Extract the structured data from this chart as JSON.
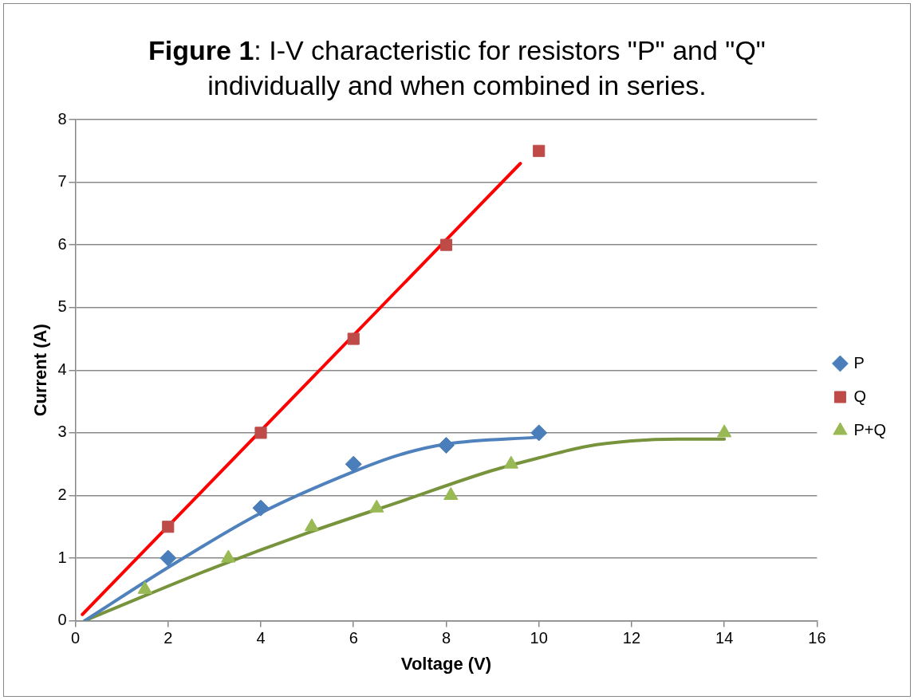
{
  "chart_data": {
    "type": "scatter",
    "title": "Figure 1: I-V characteristic for resistors \"P\" and \"Q\" individually and when combined in series.",
    "xlabel": "Voltage (V)",
    "ylabel": "Current (A)",
    "xlim": [
      0,
      16
    ],
    "xticks": [
      0,
      2,
      4,
      6,
      8,
      10,
      12,
      14,
      16
    ],
    "ylim": [
      0,
      8
    ],
    "yticks": [
      0,
      1,
      2,
      3,
      4,
      5,
      6,
      7,
      8
    ],
    "grid": "y",
    "legend": "right",
    "series": [
      {
        "name": "P",
        "marker": "diamond",
        "color": "#4a7ebb",
        "x": [
          2,
          4,
          6,
          8,
          10
        ],
        "values": [
          1,
          1.8,
          2.5,
          2.8,
          3
        ]
      },
      {
        "name": "Q",
        "marker": "square",
        "color": "#be4b48",
        "x": [
          2,
          4,
          6,
          8,
          10
        ],
        "values": [
          1.5,
          3,
          4.5,
          6,
          7.5
        ]
      },
      {
        "name": "P+Q",
        "marker": "triangle",
        "color": "#98b954",
        "x": [
          1.5,
          3.3,
          5.1,
          6.5,
          8.1,
          9.4,
          14
        ],
        "values": [
          0.5,
          1,
          1.5,
          1.8,
          2,
          2.5,
          3
        ]
      },
      {
        "type": "line",
        "marker": "none",
        "line_style": "solid",
        "color": "#ff0000",
        "x": [
          0.15,
          9.6
        ],
        "values": [
          0.1,
          7.3
        ]
      },
      {
        "type": "line",
        "marker": "none",
        "line_style": "solid",
        "color": "#4f81bd",
        "x": [
          0.2,
          2,
          4,
          6,
          7,
          8,
          10
        ],
        "values": [
          0,
          0.85,
          1.72,
          2.38,
          2.65,
          2.82,
          2.93
        ]
      },
      {
        "type": "line",
        "marker": "none",
        "line_style": "solid",
        "color": "#77933c",
        "x": [
          0.2,
          1.5,
          3,
          5,
          7,
          9,
          10,
          11,
          12,
          13,
          14
        ],
        "values": [
          0,
          0.4,
          0.85,
          1.4,
          1.9,
          2.4,
          2.6,
          2.78,
          2.87,
          2.9,
          2.9
        ]
      }
    ]
  }
}
